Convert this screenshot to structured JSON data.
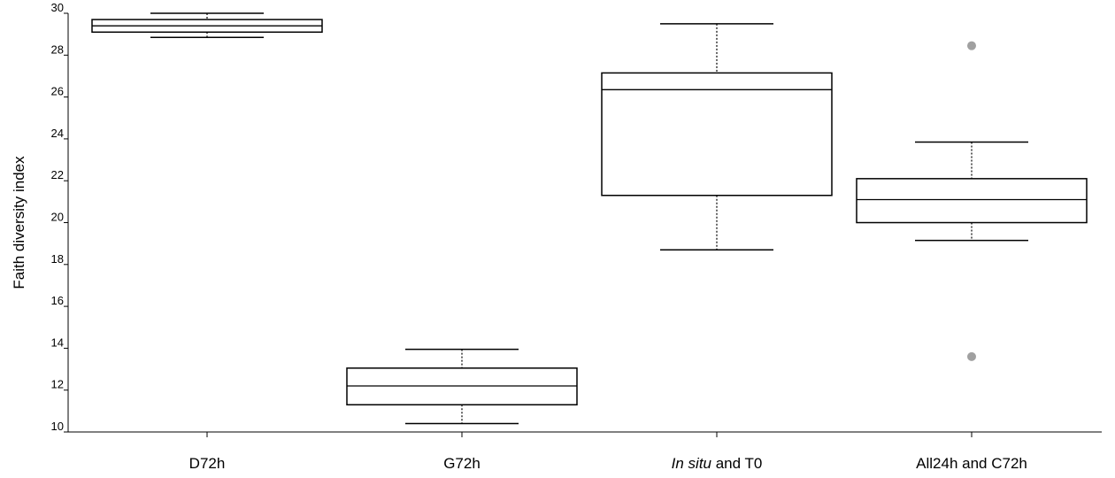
{
  "chart_data": {
    "type": "boxplot",
    "ylabel": "Faith diversity index",
    "xlabel": "",
    "ylim": [
      10,
      30
    ],
    "yticks": [
      "10",
      "12",
      "14",
      "16",
      "18",
      "20",
      "22",
      "24",
      "26",
      "28",
      "30"
    ],
    "categories": [
      {
        "label": "D72h",
        "italic_prefix": ""
      },
      {
        "label": "G72h",
        "italic_prefix": ""
      },
      {
        "label": " and T0",
        "italic_prefix": "In situ"
      },
      {
        "label": "All24h and C72h",
        "italic_prefix": ""
      }
    ],
    "boxes": [
      {
        "min": 28.85,
        "q1": 29.1,
        "median": 29.4,
        "q3": 29.7,
        "max": 30.0,
        "outliers": []
      },
      {
        "min": 10.4,
        "q1": 11.3,
        "median": 12.2,
        "q3": 13.05,
        "max": 13.95,
        "outliers": []
      },
      {
        "min": 18.7,
        "q1": 21.3,
        "median": 26.35,
        "q3": 27.15,
        "max": 29.5,
        "outliers": []
      },
      {
        "min": 19.15,
        "q1": 20.0,
        "median": 21.1,
        "q3": 22.1,
        "max": 23.85,
        "outliers": [
          28.45,
          13.6
        ]
      }
    ],
    "grid": false,
    "legend": "none"
  }
}
